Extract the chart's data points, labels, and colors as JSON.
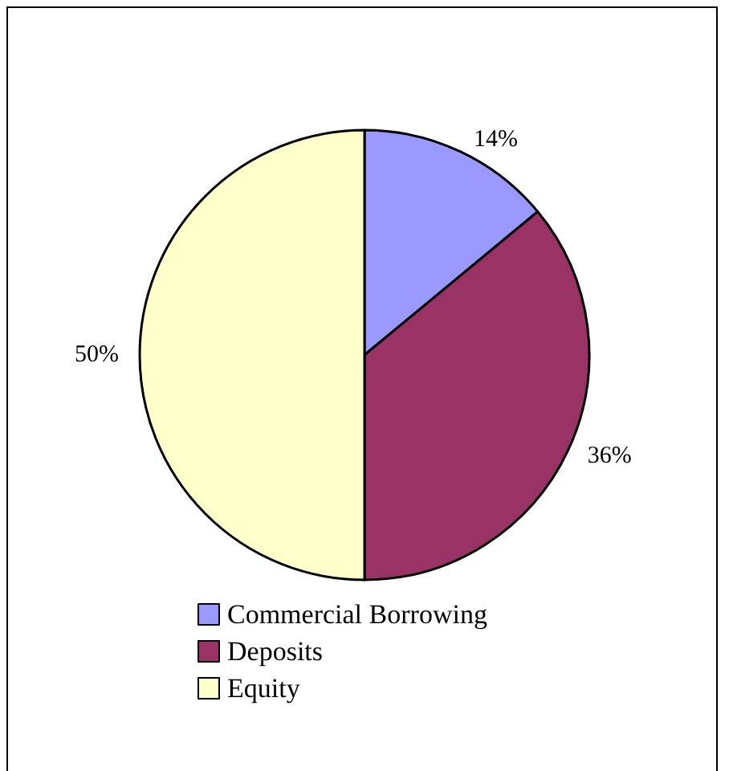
{
  "chart_data": {
    "type": "pie",
    "categories": [
      "Commercial Borrowing",
      "Deposits",
      "Equity"
    ],
    "values": [
      14,
      36,
      50
    ],
    "colors": [
      "#9999ff",
      "#993366",
      "#ffffcc"
    ],
    "value_labels": [
      "14%",
      "36%",
      "50%"
    ],
    "legend": "bottom"
  }
}
